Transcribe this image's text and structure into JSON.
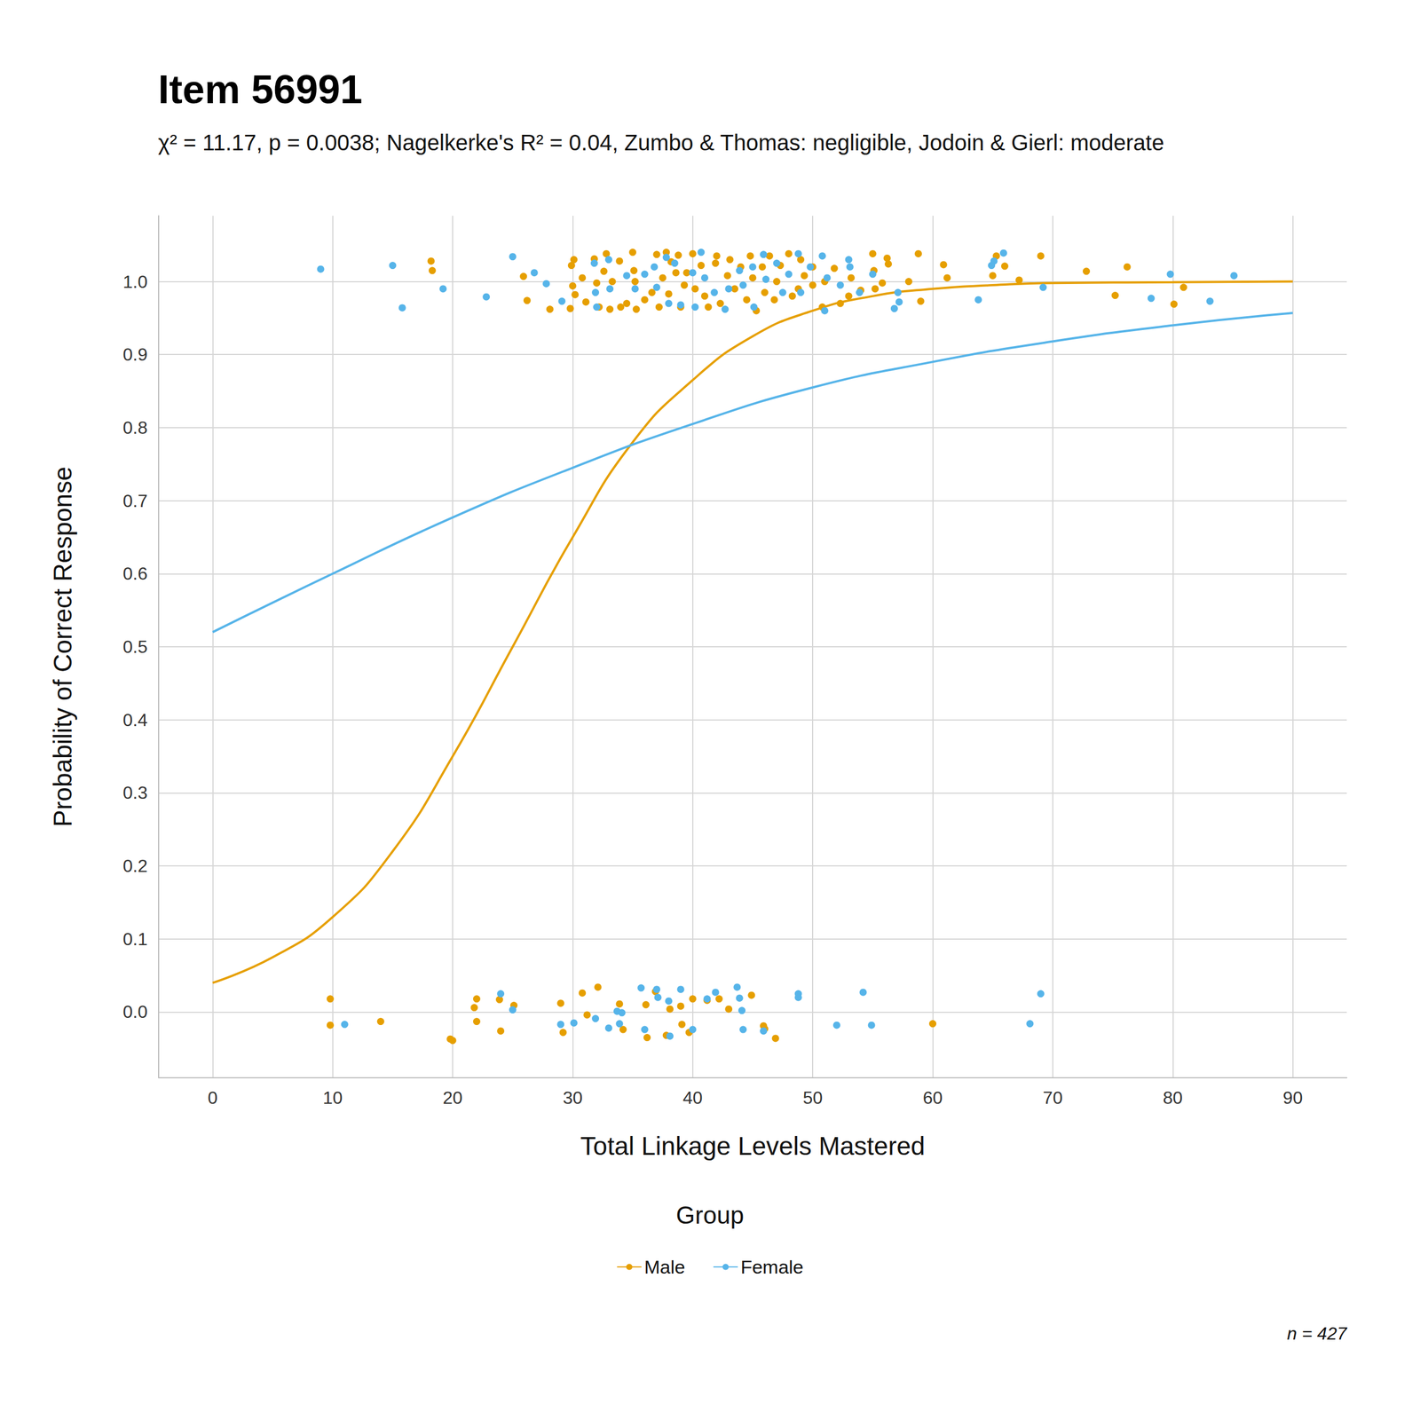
{
  "chart_data": {
    "type": "scatter",
    "title": "Item 56991",
    "subtitle": "χ² = 11.17, p = 0.0038; Nagelkerke's R² = 0.04, Zumbo & Thomas: negligible, Jodoin & Gierl: moderate",
    "x_label": "Total Linkage Levels Mastered",
    "y_label": "Probability of Correct Response",
    "legend_title": "Group",
    "legend": "bottom",
    "annotations": [
      "n = 427"
    ],
    "grid": true,
    "xlim": [
      -4.5,
      94.5
    ],
    "xticks": [
      0,
      10,
      20,
      30,
      40,
      50,
      60,
      70,
      80,
      90
    ],
    "ylim": [
      -0.09,
      1.09
    ],
    "yticks": [
      {
        "value": 0,
        "label": "0.0"
      },
      0.1,
      0.2,
      0.3,
      0.4,
      0.5,
      0.6,
      0.7,
      0.8,
      0.9,
      {
        "value": 1,
        "label": "1.0"
      }
    ],
    "series": [
      {
        "name": "Male",
        "type": "line",
        "color": "#E69F00",
        "line_style": "solid",
        "x": [
          0,
          5,
          10,
          15,
          20,
          25,
          30,
          35,
          40,
          45,
          50,
          55,
          60,
          65,
          70,
          80,
          90
        ],
        "values": [
          0.04,
          0.075,
          0.13,
          0.22,
          0.35,
          0.5,
          0.65,
          0.78,
          0.865,
          0.925,
          0.96,
          0.98,
          0.99,
          0.995,
          0.998,
          0.999,
          1.0
        ]
      },
      {
        "name": "Female",
        "type": "line",
        "color": "#56B4E9",
        "line_style": "solid",
        "x": [
          0,
          10,
          20,
          30,
          40,
          50,
          60,
          70,
          80,
          90
        ],
        "values": [
          0.52,
          0.6,
          0.677,
          0.745,
          0.805,
          0.855,
          0.89,
          0.918,
          0.94,
          0.957
        ]
      },
      {
        "name": "Male",
        "type": "scatter",
        "color": "#E69F00",
        "marker": "circle",
        "points": [
          [
            18.2,
            1.028
          ],
          [
            18.3,
            1.015
          ],
          [
            25.9,
            1.007
          ],
          [
            26.2,
            0.974
          ],
          [
            28.1,
            0.962
          ],
          [
            29.8,
            0.963
          ],
          [
            29.9,
            1.022
          ],
          [
            30.1,
            1.03
          ],
          [
            30,
            0.994
          ],
          [
            30.2,
            0.982
          ],
          [
            30.8,
            1.005
          ],
          [
            31.1,
            0.972
          ],
          [
            31.8,
            1.031
          ],
          [
            32,
            0.998
          ],
          [
            32.2,
            0.965
          ],
          [
            32.6,
            1.014
          ],
          [
            32.8,
            1.038
          ],
          [
            33.1,
            0.962
          ],
          [
            33.3,
            1.0
          ],
          [
            33.9,
            1.028
          ],
          [
            34,
            0.965
          ],
          [
            34.5,
            0.97
          ],
          [
            35,
            1.04
          ],
          [
            35.1,
            1.015
          ],
          [
            35.2,
            1.0
          ],
          [
            35.3,
            0.962
          ],
          [
            36,
            0.975
          ],
          [
            36.6,
            0.985
          ],
          [
            37,
            1.037
          ],
          [
            37.2,
            0.965
          ],
          [
            37.5,
            1.005
          ],
          [
            37.8,
            1.04
          ],
          [
            38,
            0.983
          ],
          [
            38.2,
            1.027
          ],
          [
            38.6,
            1.012
          ],
          [
            38.8,
            1.036
          ],
          [
            39,
            0.965
          ],
          [
            39.3,
            0.995
          ],
          [
            39.5,
            1.012
          ],
          [
            40,
            1.038
          ],
          [
            40.2,
            0.99
          ],
          [
            40.7,
            1.022
          ],
          [
            41,
            0.98
          ],
          [
            41.3,
            0.965
          ],
          [
            41.9,
            1.025
          ],
          [
            42,
            1.035
          ],
          [
            42.3,
            0.97
          ],
          [
            42.9,
            1.008
          ],
          [
            43.1,
            1.03
          ],
          [
            43.5,
            0.99
          ],
          [
            44,
            1.02
          ],
          [
            44.5,
            0.975
          ],
          [
            44.8,
            1.035
          ],
          [
            45,
            1.005
          ],
          [
            45.3,
            0.96
          ],
          [
            45.8,
            1.02
          ],
          [
            46,
            0.985
          ],
          [
            46.4,
            1.035
          ],
          [
            46.8,
            0.975
          ],
          [
            47,
            1.0
          ],
          [
            47.3,
            1.022
          ],
          [
            48,
            1.038
          ],
          [
            48.3,
            0.98
          ],
          [
            48.8,
            0.99
          ],
          [
            49,
            1.03
          ],
          [
            49.3,
            1.008
          ],
          [
            50,
            1.02
          ],
          [
            50,
            0.995
          ],
          [
            50.8,
            0.965
          ],
          [
            51,
            1.0
          ],
          [
            51.8,
            1.018
          ],
          [
            52.3,
            0.97
          ],
          [
            53,
            0.98
          ],
          [
            53.2,
            1.005
          ],
          [
            54,
            0.988
          ],
          [
            55,
            1.038
          ],
          [
            55.1,
            1.015
          ],
          [
            55.2,
            0.99
          ],
          [
            55.8,
            0.998
          ],
          [
            56.2,
            1.032
          ],
          [
            56.3,
            1.024
          ],
          [
            58,
            1.0
          ],
          [
            58.8,
            1.038
          ],
          [
            59,
            0.973
          ],
          [
            60.9,
            1.023
          ],
          [
            61.2,
            1.005
          ],
          [
            65,
            1.008
          ],
          [
            65.3,
            1.035
          ],
          [
            66,
            1.021
          ],
          [
            67.2,
            1.002
          ],
          [
            69,
            1.035
          ],
          [
            72.8,
            1.014
          ],
          [
            75.2,
            0.981
          ],
          [
            76.2,
            1.02
          ],
          [
            80.1,
            0.969
          ],
          [
            80.9,
            0.992
          ],
          [
            9.8,
            0.018
          ],
          [
            9.8,
            -0.018
          ],
          [
            14,
            -0.013
          ],
          [
            19.8,
            -0.037
          ],
          [
            20,
            -0.039
          ],
          [
            21.8,
            0.006
          ],
          [
            22,
            0.018
          ],
          [
            22,
            -0.013
          ],
          [
            23.9,
            0.017
          ],
          [
            24,
            -0.026
          ],
          [
            25.1,
            0.009
          ],
          [
            29,
            0.012
          ],
          [
            29.2,
            -0.028
          ],
          [
            30.8,
            0.026
          ],
          [
            31.2,
            -0.004
          ],
          [
            32.1,
            0.034
          ],
          [
            33.9,
            0.011
          ],
          [
            34.2,
            -0.024
          ],
          [
            36.1,
            0.01
          ],
          [
            36.2,
            -0.035
          ],
          [
            36.9,
            0.028
          ],
          [
            37.8,
            -0.032
          ],
          [
            38.1,
            0.004
          ],
          [
            39,
            0.008
          ],
          [
            39.1,
            -0.017
          ],
          [
            39.7,
            -0.028
          ],
          [
            40,
            0.018
          ],
          [
            41.2,
            0.016
          ],
          [
            42.2,
            0.018
          ],
          [
            43,
            0.004
          ],
          [
            44.9,
            0.023
          ],
          [
            45.9,
            -0.019
          ],
          [
            46,
            -0.023
          ],
          [
            46.9,
            -0.036
          ],
          [
            60,
            -0.016
          ]
        ]
      },
      {
        "name": "Female",
        "type": "scatter",
        "color": "#56B4E9",
        "marker": "circle",
        "points": [
          [
            9,
            1.017
          ],
          [
            15,
            1.022
          ],
          [
            15.8,
            0.964
          ],
          [
            19.2,
            0.99
          ],
          [
            22.8,
            0.979
          ],
          [
            25,
            1.034
          ],
          [
            26.8,
            1.012
          ],
          [
            27.8,
            0.997
          ],
          [
            29.1,
            0.973
          ],
          [
            31.8,
            1.025
          ],
          [
            31.9,
            0.985
          ],
          [
            32,
            0.965
          ],
          [
            33,
            1.03
          ],
          [
            33.1,
            0.99
          ],
          [
            34.5,
            1.008
          ],
          [
            35.2,
            0.99
          ],
          [
            36,
            1.01
          ],
          [
            36.8,
            1.02
          ],
          [
            37,
            0.992
          ],
          [
            37.8,
            1.033
          ],
          [
            38,
            0.97
          ],
          [
            38.5,
            1.025
          ],
          [
            39,
            0.968
          ],
          [
            40,
            1.012
          ],
          [
            40.2,
            0.965
          ],
          [
            40.7,
            1.04
          ],
          [
            41,
            1.005
          ],
          [
            41.8,
            0.985
          ],
          [
            42.7,
            0.962
          ],
          [
            43,
            0.99
          ],
          [
            43.9,
            1.015
          ],
          [
            44.2,
            0.995
          ],
          [
            45,
            1.02
          ],
          [
            45.1,
            0.965
          ],
          [
            45.9,
            1.037
          ],
          [
            46.1,
            1.003
          ],
          [
            47,
            1.025
          ],
          [
            47.5,
            0.985
          ],
          [
            48,
            1.01
          ],
          [
            48.8,
            1.038
          ],
          [
            49,
            0.985
          ],
          [
            49.8,
            1.02
          ],
          [
            50.8,
            1.035
          ],
          [
            51,
            0.96
          ],
          [
            51.2,
            1.005
          ],
          [
            52.3,
            0.995
          ],
          [
            53,
            1.03
          ],
          [
            53.1,
            1.02
          ],
          [
            53.9,
            0.985
          ],
          [
            55,
            1.01
          ],
          [
            56.8,
            0.963
          ],
          [
            57.1,
            0.985
          ],
          [
            57.2,
            0.972
          ],
          [
            63.8,
            0.975
          ],
          [
            64.9,
            1.022
          ],
          [
            65.1,
            1.028
          ],
          [
            65.9,
            1.039
          ],
          [
            69.2,
            0.992
          ],
          [
            78.2,
            0.977
          ],
          [
            79.8,
            1.01
          ],
          [
            83.1,
            0.973
          ],
          [
            85.1,
            1.008
          ],
          [
            11,
            -0.017
          ],
          [
            24,
            0.025
          ],
          [
            25,
            0.003
          ],
          [
            29,
            -0.017
          ],
          [
            30.1,
            -0.015
          ],
          [
            31.9,
            -0.009
          ],
          [
            33,
            -0.022
          ],
          [
            33.7,
            0.001
          ],
          [
            33.9,
            -0.016
          ],
          [
            34.1,
            -0.001
          ],
          [
            35.7,
            0.033
          ],
          [
            36,
            -0.024
          ],
          [
            37,
            0.031
          ],
          [
            37.1,
            0.02
          ],
          [
            38,
            0.015
          ],
          [
            38.1,
            -0.033
          ],
          [
            39,
            0.031
          ],
          [
            40,
            -0.024
          ],
          [
            41.2,
            0.018
          ],
          [
            41.9,
            0.027
          ],
          [
            43.7,
            0.034
          ],
          [
            43.9,
            0.019
          ],
          [
            44.2,
            -0.024
          ],
          [
            44.1,
            0.002
          ],
          [
            45.9,
            -0.026
          ],
          [
            48.8,
            0.025
          ],
          [
            48.8,
            0.02
          ],
          [
            54.2,
            0.027
          ],
          [
            52,
            -0.018
          ],
          [
            54.9,
            -0.018
          ],
          [
            68.1,
            -0.016
          ],
          [
            69,
            0.025
          ]
        ]
      }
    ]
  }
}
